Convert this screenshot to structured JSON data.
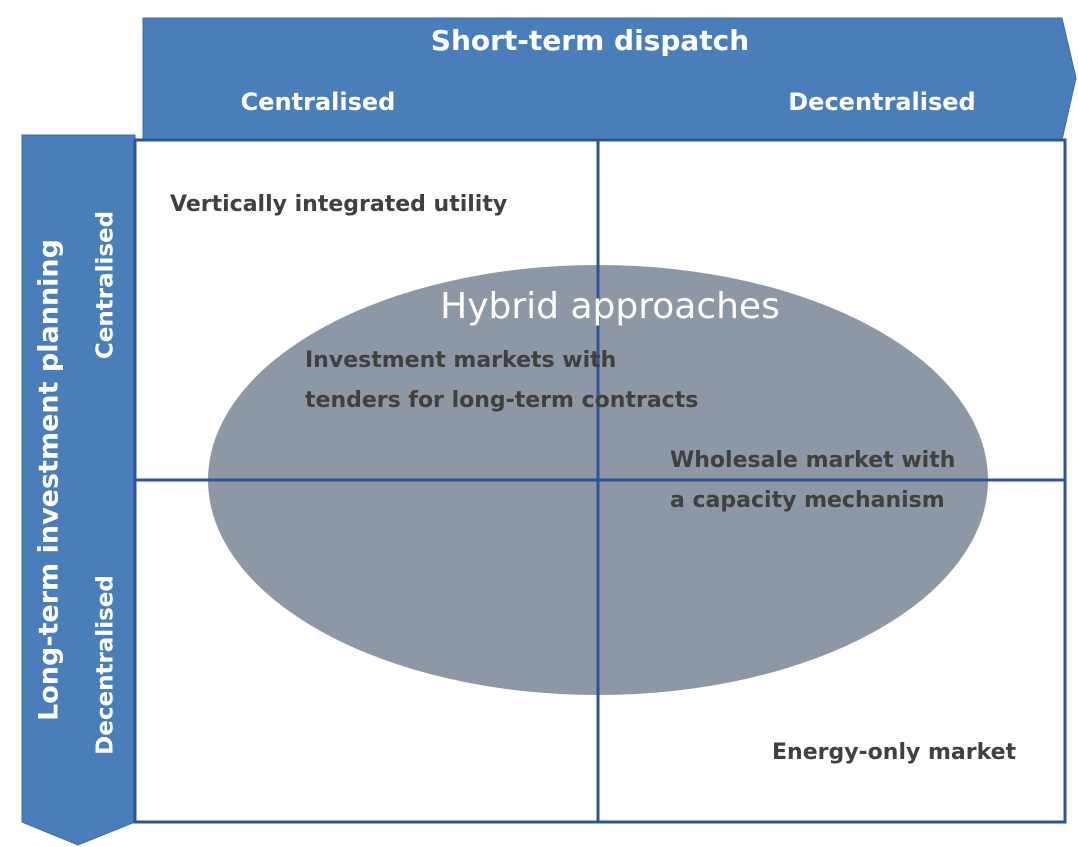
{
  "header": {
    "title": "Short-term dispatch",
    "columns": [
      "Centralised",
      "Decentralised"
    ]
  },
  "side": {
    "title": "Long-term investment planning",
    "rows": [
      "Centralised",
      "Decentralised"
    ]
  },
  "hybrid": {
    "title": "Hybrid approaches"
  },
  "cells": [
    "Vertically integrated utility",
    "Investment markets with",
    "tenders for long-term contracts",
    "Wholesale market with",
    "a capacity mechanism",
    "Energy-only market"
  ]
}
